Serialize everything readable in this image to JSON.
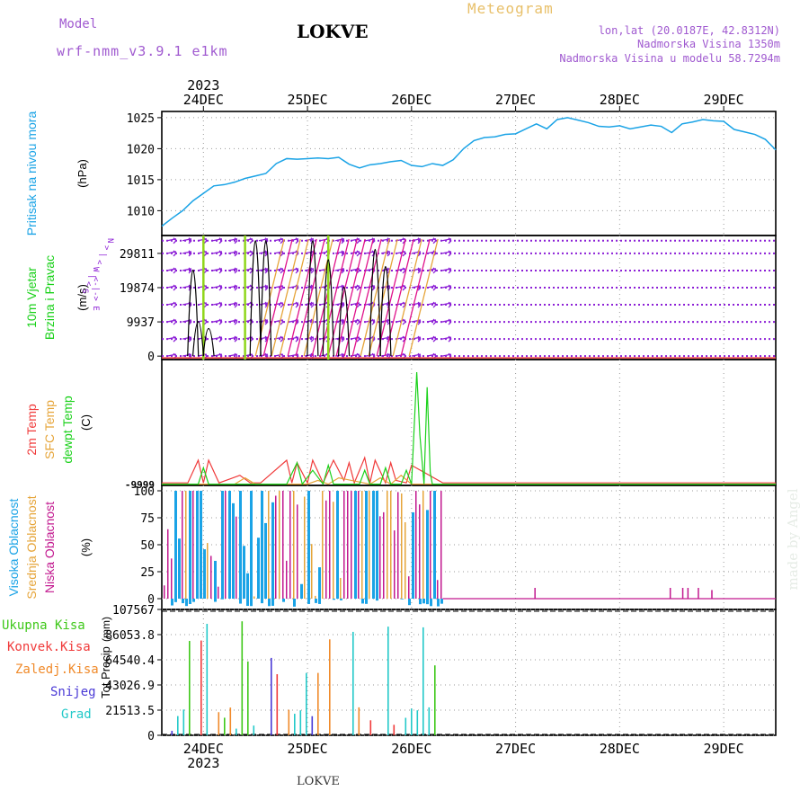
{
  "header": {
    "model_label": "Model",
    "model_name": "wrf-nmm_v3.9.1 e1km",
    "station": "LOKVE",
    "title": "Meteogram",
    "coords": "lon,lat (20.0187E, 42.8312N)",
    "altitude": "Nadmorska Visina 1350m",
    "model_altitude": "Nadmorska Visina u modelu 58.7294m",
    "footer_station": "LOKVE",
    "watermark": "made by Angel",
    "year_top": "2023",
    "year_bottom": "2023"
  },
  "colors": {
    "pressure": "#1aa3e6",
    "wind_arrow": "#8c1fd6",
    "wind_barb_a": "#e0118a",
    "wind_barb_b": "#e6a53a",
    "wind_marker": "#8fd61a",
    "temp_2m": "#f03a3a",
    "temp_sfc": "#e6a53a",
    "temp_dew": "#1ad11a",
    "cloud_high": "#1aa3e6",
    "cloud_mid": "#e6a53a",
    "cloud_low": "#c2188f",
    "precip_total": "#3fc81a",
    "precip_conv": "#f03a3a",
    "precip_frz": "#f08a2a",
    "precip_snow": "#4a3ad6",
    "precip_grad": "#23c9c9"
  },
  "chart_data": {
    "type": "line",
    "x_axis": {
      "day_labels": [
        "24DEC",
        "25DEC",
        "26DEC",
        "27DEC",
        "28DEC",
        "29DEC"
      ],
      "range_days": [
        23.6,
        29.5
      ]
    },
    "panels": [
      {
        "id": "pressure",
        "ylabel": "Pritisak na nivou mora",
        "unit": "(hPa)",
        "yticks": [
          "1010",
          "1015",
          "1020",
          "1025"
        ],
        "ylim": [
          1006,
          1026
        ],
        "series": [
          {
            "color_key": "pressure",
            "x": [
              23.6,
              23.7,
              23.8,
              23.9,
              24.0,
              24.1,
              24.2,
              24.3,
              24.4,
              24.5,
              24.6,
              24.7,
              24.8,
              24.9,
              25.0,
              25.1,
              25.2,
              25.3,
              25.4,
              25.5,
              25.6,
              25.7,
              25.8,
              25.9,
              26.0,
              26.1,
              26.2,
              26.3,
              26.4,
              26.5,
              26.6,
              26.7,
              26.8,
              26.9,
              27.0,
              27.1,
              27.2,
              27.3,
              27.4,
              27.5,
              27.6,
              27.7,
              27.8,
              27.9,
              28.0,
              28.1,
              28.2,
              28.3,
              28.4,
              28.5,
              28.6,
              28.7,
              28.8,
              28.9,
              29.0,
              29.1,
              29.2,
              29.3,
              29.4,
              29.5
            ],
            "y": [
              1007.5,
              1008.8,
              1010.0,
              1011.6,
              1012.8,
              1014.0,
              1014.2,
              1014.6,
              1015.2,
              1015.6,
              1016.0,
              1017.6,
              1018.4,
              1018.3,
              1018.4,
              1018.5,
              1018.4,
              1018.6,
              1017.5,
              1016.9,
              1017.4,
              1017.6,
              1017.9,
              1018.1,
              1017.3,
              1017.1,
              1017.6,
              1017.3,
              1018.2,
              1020.0,
              1021.3,
              1021.8,
              1021.9,
              1022.3,
              1022.4,
              1023.2,
              1024.0,
              1023.2,
              1024.7,
              1025.0,
              1024.6,
              1024.2,
              1023.6,
              1023.5,
              1023.7,
              1023.2,
              1023.5,
              1023.8,
              1023.6,
              1022.6,
              1024.0,
              1024.3,
              1024.7,
              1024.5,
              1024.4,
              1023.1,
              1022.7,
              1022.3,
              1021.5,
              1019.8
            ]
          }
        ]
      },
      {
        "id": "wind",
        "ylabel": "10m Vjetar",
        "ylabel2": "Brzina i Pravac",
        "unit": "(m/s)",
        "compass": "N\n>\n|\n<\nW <-|-> E\n|\n<\nS",
        "yticks": [
          "0",
          "9937",
          "19874",
          "29811"
        ],
        "ylim": [
          -1000,
          35000
        ],
        "active_range_days": [
          23.6,
          26.3
        ],
        "arrow_row_values": [
          0,
          4970,
          9937,
          14900,
          19874,
          24840,
          29811,
          33500
        ]
      },
      {
        "id": "temperature",
        "ylabel": "2m Temp",
        "ylabel2": "SFC Temp",
        "ylabel3": "dewpt Temp",
        "unit": "(C)",
        "yticks": [
          "-9999"
        ],
        "ylim": [
          0,
          100
        ],
        "series": [
          {
            "name": "2m Temp",
            "color_key": "temp_2m",
            "x": [
              23.6,
              23.85,
              23.95,
              24.0,
              24.05,
              24.15,
              24.35,
              24.45,
              24.55,
              24.8,
              24.85,
              24.9,
              25.0,
              25.05,
              25.15,
              25.25,
              25.35,
              25.4,
              25.45,
              25.55,
              25.6,
              25.65,
              25.75,
              25.8,
              25.85,
              25.95,
              26.0,
              26.3,
              29.5
            ],
            "y": [
              2,
              2,
              20,
              2,
              20,
              2,
              8,
              2,
              2,
              20,
              2,
              18,
              2,
              20,
              2,
              20,
              4,
              18,
              2,
              22,
              2,
              20,
              2,
              18,
              4,
              2,
              16,
              2,
              2
            ]
          },
          {
            "name": "SFC Temp",
            "color_key": "temp_sfc",
            "x": [
              23.6,
              24.0,
              24.3,
              24.4,
              24.5,
              25.0,
              25.1,
              25.2,
              25.3,
              25.6,
              25.7,
              25.8,
              25.9,
              26.0,
              26.3,
              29.5
            ],
            "y": [
              1,
              1,
              1,
              6,
              1,
              1,
              4,
              1,
              6,
              1,
              6,
              1,
              8,
              1,
              1,
              1
            ]
          },
          {
            "name": "dewpt Temp",
            "color_key": "temp_dew",
            "x": [
              23.6,
              23.95,
              24.0,
              24.05,
              24.8,
              24.9,
              24.95,
              25.05,
              25.15,
              25.2,
              25.25,
              25.5,
              25.55,
              25.6,
              25.7,
              25.75,
              25.8,
              25.9,
              25.95,
              26.0,
              26.05,
              26.08,
              26.12,
              26.15,
              26.18,
              26.2,
              26.3,
              29.5
            ],
            "y": [
              1,
              1,
              14,
              1,
              1,
              18,
              1,
              12,
              1,
              16,
              1,
              1,
              12,
              1,
              1,
              14,
              1,
              1,
              12,
              1,
              90,
              40,
              1,
              78,
              10,
              1,
              1,
              1
            ]
          }
        ]
      },
      {
        "id": "clouds",
        "ylabel": "Visoka Oblacnost",
        "ylabel2": "Srednja Oblacnost",
        "ylabel3": "Niska Oblacnost",
        "unit": "(%)",
        "yticks": [
          "0",
          "25",
          "50",
          "75",
          "100"
        ],
        "ylim": [
          -10,
          105
        ],
        "dense_range_days": [
          23.6,
          26.3
        ],
        "sparse_low_bars": [
          [
            27.18,
            10
          ],
          [
            28.48,
            10
          ],
          [
            28.6,
            10
          ],
          [
            28.65,
            10
          ],
          [
            28.75,
            10
          ],
          [
            28.88,
            8
          ]
        ]
      },
      {
        "id": "precipitation",
        "ylabel": "Tot Precip",
        "unit": "(mm)",
        "yticks": [
          "0",
          "21513.5",
          "43026.9",
          "64540.4",
          "86053.8",
          "107567"
        ],
        "ylim": [
          0,
          107567
        ],
        "legend": [
          "Ukupna Kisa",
          "Konvek.Kisa",
          "Zaledj.Kisa",
          "Snijeg",
          "Grad"
        ],
        "active_range_days": [
          23.6,
          26.3
        ]
      }
    ]
  }
}
